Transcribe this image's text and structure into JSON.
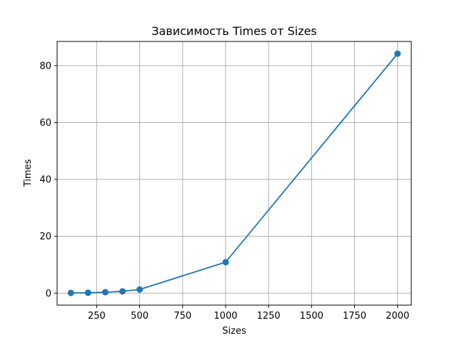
{
  "chart_data": {
    "type": "line",
    "title": "Зависимость Times от Sizes",
    "xlabel": "Sizes",
    "ylabel": "Times",
    "xlim": [
      20,
      2080
    ],
    "ylim": [
      -4.2,
      88.5
    ],
    "xticks": [
      250,
      500,
      750,
      1000,
      1250,
      1500,
      1750,
      2000
    ],
    "yticks": [
      0,
      20,
      40,
      60,
      80
    ],
    "grid": true,
    "x": [
      100,
      200,
      300,
      400,
      500,
      1000,
      2000
    ],
    "series": [
      {
        "values": [
          0.1,
          0.15,
          0.35,
          0.65,
          1.3,
          10.9,
          84.2
        ],
        "color": "#1f77b4",
        "marker": "circle"
      }
    ]
  }
}
